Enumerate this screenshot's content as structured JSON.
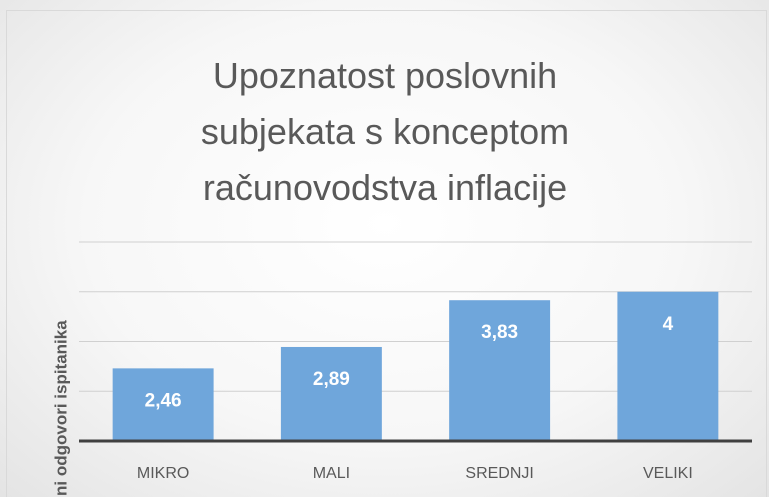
{
  "chart_data": {
    "type": "bar",
    "title": "Upoznatost poslovnih subjekata s konceptom računovodstva inflacije",
    "y_label": "ni odgovori ispitanika",
    "categories": [
      "MIKRO",
      "MALI",
      "SREDNJI",
      "VELIKI"
    ],
    "values": [
      2.46,
      2.89,
      3.83,
      4
    ],
    "value_labels": [
      "2,46",
      "2,89",
      "3,83",
      "4"
    ],
    "color": "#6fa6db",
    "ylim": [
      1,
      5
    ],
    "yticks": [
      1,
      2,
      3,
      4,
      5
    ],
    "grid": true
  }
}
